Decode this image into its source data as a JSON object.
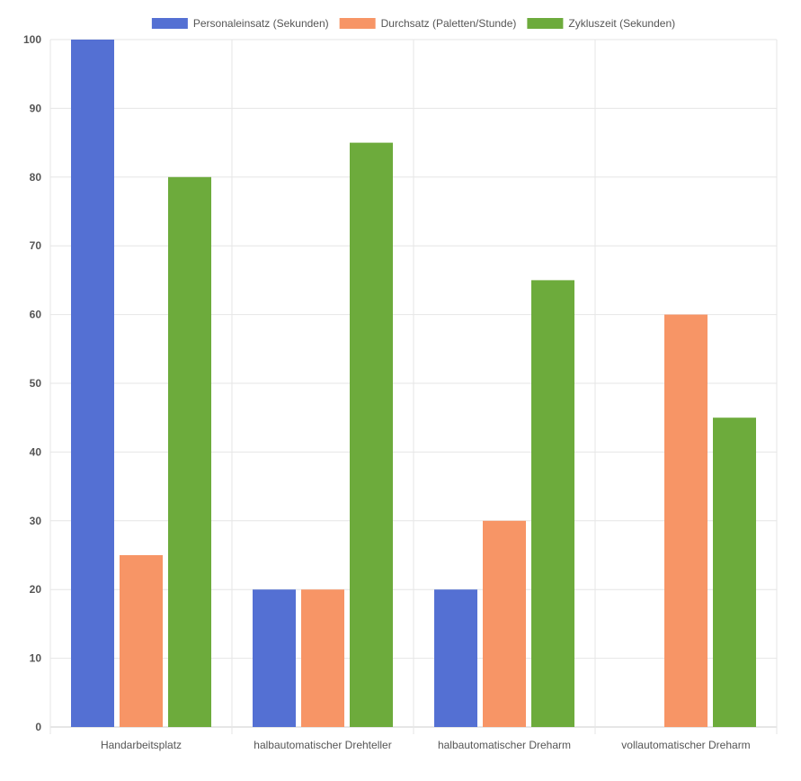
{
  "chart_data": {
    "type": "bar",
    "title": "",
    "xlabel": "",
    "ylabel": "",
    "ylim": [
      0,
      100
    ],
    "yticks": [
      0,
      10,
      20,
      30,
      40,
      50,
      60,
      70,
      80,
      90,
      100
    ],
    "grid": true,
    "legend_position": "top-center",
    "categories": [
      "Handarbeitsplatz",
      "halbautomatischer Drehteller",
      "halbautomatischer Dreharm",
      "vollautomatischer Dreharm"
    ],
    "series": [
      {
        "name": "Personaleinsatz (Sekunden)",
        "color": "#5470d3",
        "values": [
          100,
          20,
          20,
          0
        ]
      },
      {
        "name": "Durchsatz (Paletten/Stunde)",
        "color": "#f79566",
        "values": [
          25,
          20,
          30,
          60
        ]
      },
      {
        "name": "Zykluszeit (Sekunden)",
        "color": "#6dab3c",
        "values": [
          80,
          85,
          65,
          45
        ]
      }
    ]
  }
}
